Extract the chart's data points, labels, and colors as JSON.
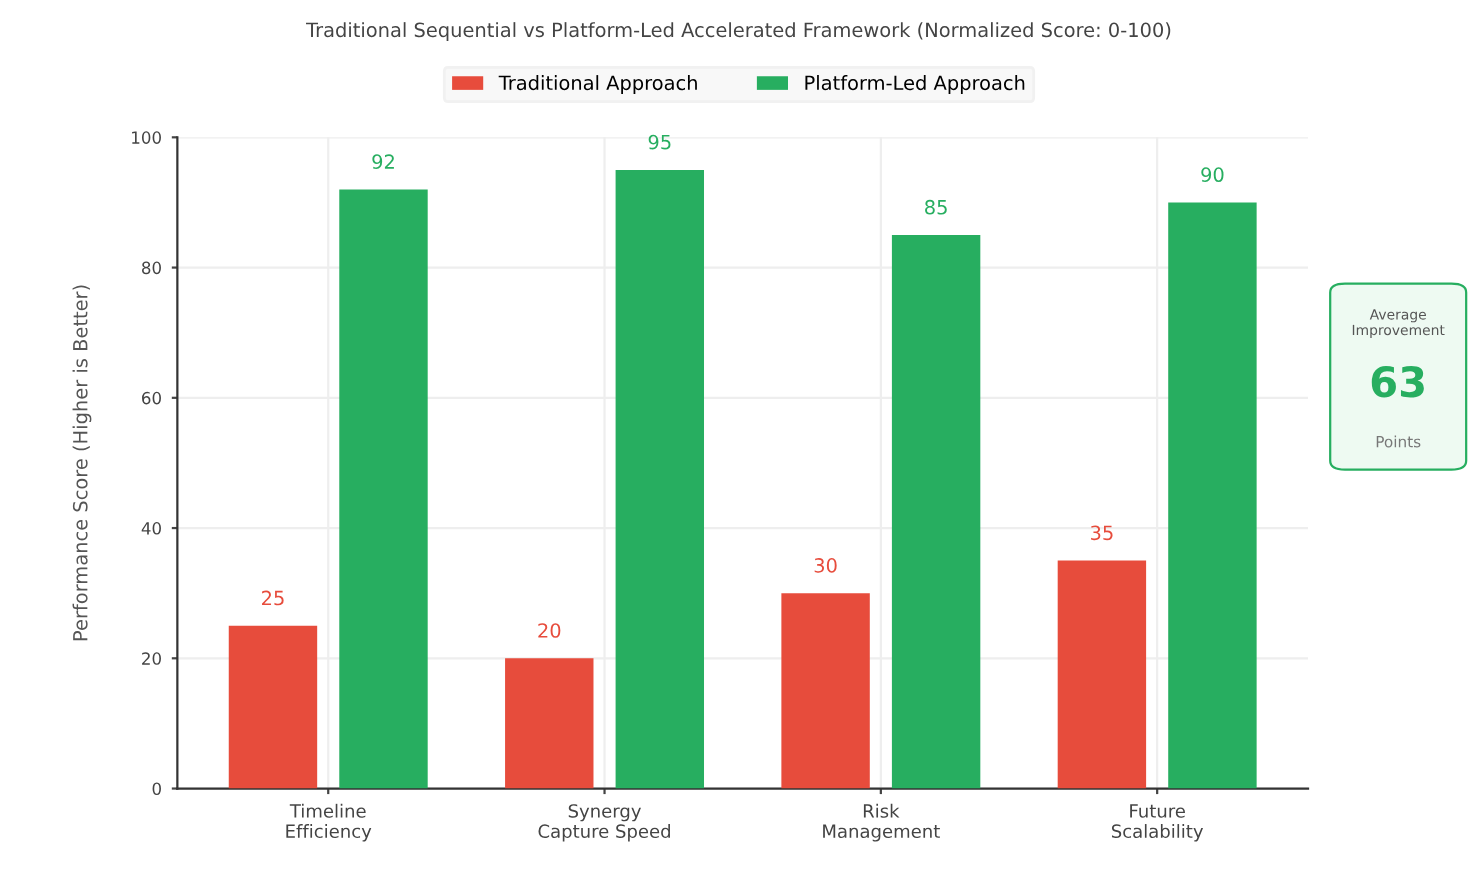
{
  "chart_data": {
    "type": "bar",
    "title": "Traditional Sequential vs Platform-Led Accelerated Framework (Normalized Score: 0-100)",
    "ylabel": "Performance Score (Higher is Better)",
    "categories": [
      "Timeline\nEfficiency",
      "Synergy\nCapture Speed",
      "Risk\nManagement",
      "Future\nScalability"
    ],
    "series": [
      {
        "name": "Traditional Approach",
        "color": "#e74c3c",
        "values": [
          25,
          20,
          30,
          35
        ]
      },
      {
        "name": "Platform-Led Approach",
        "color": "#27ae60",
        "values": [
          92,
          95,
          85,
          90
        ]
      }
    ],
    "ylim": [
      0,
      100
    ],
    "yticks": [
      0,
      20,
      40,
      60,
      80,
      100
    ],
    "grid": true,
    "legend": "top",
    "data_labels": true,
    "annotations": [
      "Average\nImprovement",
      "63",
      "Points"
    ]
  }
}
